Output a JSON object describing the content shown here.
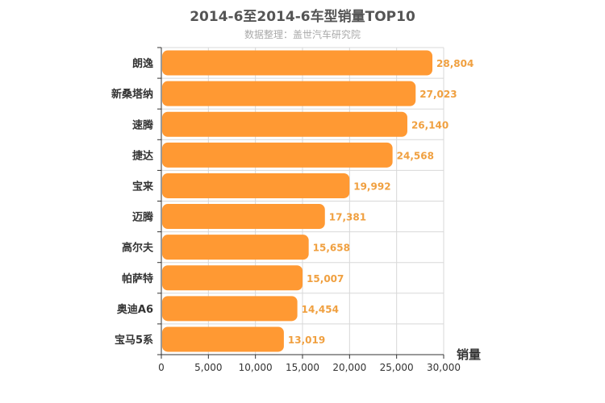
{
  "chart_data": {
    "type": "bar",
    "orientation": "horizontal",
    "title": "2014-6至2014-6车型销量TOP10",
    "subtitle": "数据整理：盖世汽车研究院",
    "xlabel": "销量",
    "ylabel": "",
    "xlim": [
      0,
      30000
    ],
    "ticks": [
      "0",
      "5,000",
      "10,000",
      "15,000",
      "20,000",
      "25,000",
      "30,000"
    ],
    "tick_values": [
      0,
      5000,
      10000,
      15000,
      20000,
      25000,
      30000
    ],
    "grid": true,
    "bar_color": "#ff9933",
    "label_color": "#f0a040",
    "categories": [
      "朗逸",
      "新桑塔纳",
      "速腾",
      "捷达",
      "宝来",
      "迈腾",
      "高尔夫",
      "帕萨特",
      "奥迪A6",
      "宝马5系"
    ],
    "values": [
      28804,
      27023,
      26140,
      24568,
      19992,
      17381,
      15658,
      15007,
      14454,
      13019
    ],
    "value_labels": [
      "28,804",
      "27,023",
      "26,140",
      "24,568",
      "19,992",
      "17,381",
      "15,658",
      "15,007",
      "14,454",
      "13,019"
    ]
  }
}
